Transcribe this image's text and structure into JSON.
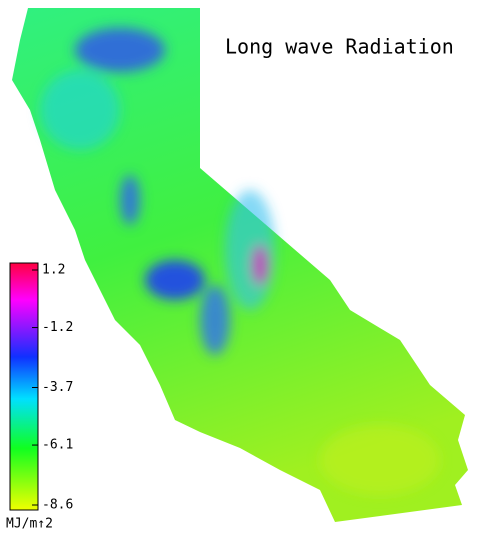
{
  "title": "Long wave Radiation",
  "colorbar": {
    "lim": [
      -8.6,
      1.2
    ],
    "ticks": [
      1.2,
      -1.2,
      -3.7,
      -6.1,
      -8.6
    ],
    "unit": "MJ/m↑2"
  }
}
